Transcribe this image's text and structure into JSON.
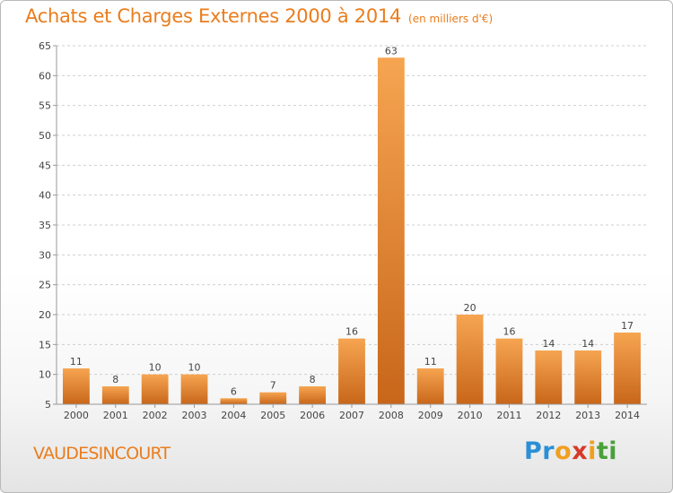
{
  "header": {
    "title": "Achats et Charges Externes 2000 à 2014",
    "subtitle": "(en milliers d'€)"
  },
  "footer": {
    "commune": "VAUDESINCOURT",
    "logo_letters": [
      {
        "char": "P",
        "color": "#2a8fd6"
      },
      {
        "char": "r",
        "color": "#2a8fd6"
      },
      {
        "char": "o",
        "color": "#f0a020"
      },
      {
        "char": "x",
        "color": "#d63a2a"
      },
      {
        "char": "i",
        "color": "#f0a020"
      },
      {
        "char": "t",
        "color": "#4aa03a"
      },
      {
        "char": "i",
        "color": "#4aa03a"
      }
    ]
  },
  "chart_data": {
    "type": "bar",
    "title": "Achats et Charges Externes 2000 à 2014",
    "subtitle": "(en milliers d'€)",
    "categories": [
      "2000",
      "2001",
      "2002",
      "2003",
      "2004",
      "2005",
      "2006",
      "2007",
      "2008",
      "2009",
      "2010",
      "2011",
      "2012",
      "2013",
      "2014"
    ],
    "values": [
      11,
      8,
      10,
      10,
      6,
      7,
      8,
      16,
      63,
      11,
      20,
      16,
      14,
      14,
      17
    ],
    "ylim": [
      5,
      65
    ],
    "yticks": [
      5,
      10,
      15,
      20,
      25,
      30,
      35,
      40,
      45,
      50,
      55,
      60,
      65
    ],
    "grid": "horizontal dashed",
    "bar_color_light": "#f6a551",
    "bar_color_dark": "#c8661a",
    "axis_color": "#999999"
  }
}
